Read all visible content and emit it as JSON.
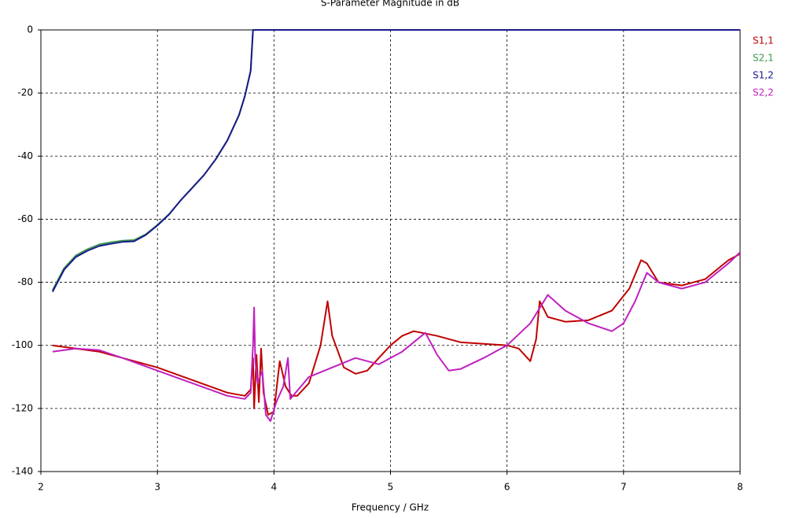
{
  "chart_data": {
    "type": "line",
    "title": "S-Parameter Magnitude in dB",
    "x_label": "Frequency / GHz",
    "xlim": [
      2,
      8
    ],
    "xticks": [
      2,
      3,
      4,
      5,
      6,
      7,
      8
    ],
    "ylim": [
      -140,
      0
    ],
    "yticks": [
      0,
      -20,
      -40,
      -60,
      -80,
      -100,
      -120,
      -140
    ],
    "grid": true,
    "legend": "right",
    "series": [
      {
        "name": "S1,1",
        "color": "#c00000",
        "x": [
          2.1,
          2.3,
          2.5,
          2.7,
          3.0,
          3.3,
          3.6,
          3.75,
          3.8,
          3.82,
          3.83,
          3.85,
          3.87,
          3.89,
          3.91,
          3.95,
          4.0,
          4.05,
          4.1,
          4.15,
          4.2,
          4.3,
          4.4,
          4.46,
          4.5,
          4.6,
          4.7,
          4.8,
          4.9,
          5.0,
          5.1,
          5.2,
          5.4,
          5.6,
          5.8,
          6.0,
          6.1,
          6.2,
          6.25,
          6.28,
          6.35,
          6.5,
          6.7,
          6.9,
          7.05,
          7.15,
          7.2,
          7.3,
          7.5,
          7.7,
          7.9,
          8.0
        ],
        "values": [
          -100,
          -101,
          -102,
          -104,
          -107,
          -111,
          -115,
          -116,
          -114,
          -104,
          -120,
          -103,
          -118,
          -101,
          -115,
          -122,
          -121,
          -105,
          -113,
          -116,
          -116,
          -112,
          -100,
          -86,
          -97,
          -107,
          -109,
          -108,
          -104,
          -100,
          -97,
          -95.5,
          -97,
          -99,
          -99.5,
          -100,
          -101,
          -105,
          -98,
          -86,
          -91,
          -92.5,
          -92,
          -89,
          -82,
          -73,
          -74,
          -80,
          -81,
          -79,
          -73,
          -71
        ]
      },
      {
        "name": "S2,1",
        "color": "#3c9a4c",
        "x": [
          2.1,
          2.2,
          2.3,
          2.4,
          2.5,
          2.6,
          2.7,
          2.8,
          2.9,
          3.0,
          3.1,
          3.2,
          3.3,
          3.4,
          3.5,
          3.6,
          3.7,
          3.75,
          3.8,
          3.82,
          4,
          5,
          6,
          7,
          8
        ],
        "values": [
          -82.5,
          -75.5,
          -71.5,
          -69.5,
          -68,
          -67.3,
          -66.8,
          -66.6,
          -64.8,
          -61.8,
          -58.4,
          -54,
          -50,
          -46,
          -41,
          -35,
          -27,
          -21,
          -13,
          0,
          0,
          0,
          0,
          0,
          0
        ]
      },
      {
        "name": "S1,2",
        "color": "#1a1a8c",
        "x": [
          2.1,
          2.2,
          2.3,
          2.4,
          2.5,
          2.6,
          2.7,
          2.8,
          2.9,
          3.0,
          3.1,
          3.2,
          3.3,
          3.4,
          3.5,
          3.6,
          3.7,
          3.75,
          3.8,
          3.82,
          4,
          5,
          6,
          7,
          8
        ],
        "values": [
          -83,
          -76,
          -72,
          -70,
          -68.5,
          -67.8,
          -67.2,
          -67,
          -65,
          -62,
          -58.5,
          -54,
          -50,
          -46,
          -41,
          -35,
          -27,
          -21,
          -13,
          0,
          0,
          0,
          0,
          0,
          0
        ]
      },
      {
        "name": "S2,2",
        "color": "#c020c0",
        "x": [
          2.1,
          2.3,
          2.5,
          2.7,
          3.0,
          3.3,
          3.6,
          3.75,
          3.8,
          3.82,
          3.83,
          3.84,
          3.86,
          3.9,
          3.93,
          3.97,
          4.02,
          4.08,
          4.12,
          4.14,
          4.3,
          4.5,
          4.7,
          4.9,
          5.1,
          5.3,
          5.4,
          5.5,
          5.6,
          5.8,
          6.0,
          6.2,
          6.35,
          6.5,
          6.7,
          6.9,
          7.0,
          7.1,
          7.2,
          7.3,
          7.5,
          7.7,
          7.9,
          8.0
        ],
        "values": [
          -102,
          -101,
          -101.5,
          -104,
          -108,
          -112,
          -116,
          -117,
          -115,
          -100,
          -88,
          -105,
          -112,
          -108,
          -122,
          -124,
          -118,
          -113,
          -104,
          -117,
          -110,
          -107,
          -104,
          -106,
          -102,
          -96,
          -103,
          -108,
          -107.5,
          -104,
          -100,
          -93,
          -84,
          -89,
          -93,
          -95.5,
          -93,
          -86,
          -77,
          -80,
          -82,
          -80,
          -74,
          -70.5
        ]
      }
    ]
  }
}
